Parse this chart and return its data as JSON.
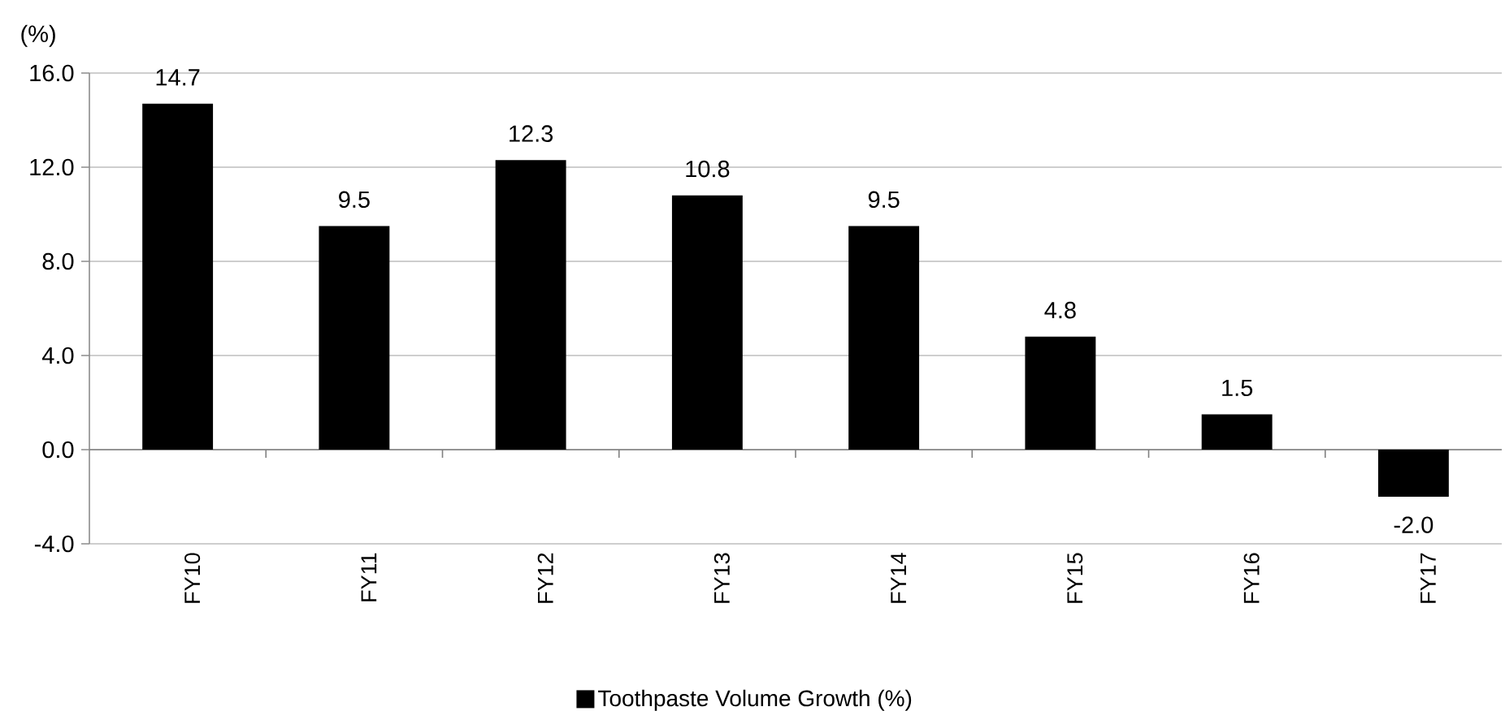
{
  "chart_data": {
    "type": "bar",
    "ylabel": "(%)",
    "categories": [
      "FY10",
      "FY11",
      "FY12",
      "FY13",
      "FY14",
      "FY15",
      "FY16",
      "FY17"
    ],
    "series": [
      {
        "name": "Toothpaste Volume Growth (%)",
        "color": "#000000",
        "values": [
          14.7,
          9.5,
          12.3,
          10.8,
          9.5,
          4.8,
          1.5,
          -2.0
        ],
        "value_labels": [
          "14.7",
          "9.5",
          "12.3",
          "10.8",
          "9.5",
          "4.8",
          "1.5",
          "-2.0"
        ]
      }
    ],
    "ylim": [
      -4,
      16
    ],
    "yticks": [
      {
        "value": -4,
        "label": "-4.0"
      },
      {
        "value": 0,
        "label": "0.0"
      },
      {
        "value": 4,
        "label": "4.0"
      },
      {
        "value": 8,
        "label": "8.0"
      },
      {
        "value": 12,
        "label": "12.0"
      },
      {
        "value": 16,
        "label": "16.0"
      }
    ],
    "grid": "y",
    "legend": "bottom"
  }
}
